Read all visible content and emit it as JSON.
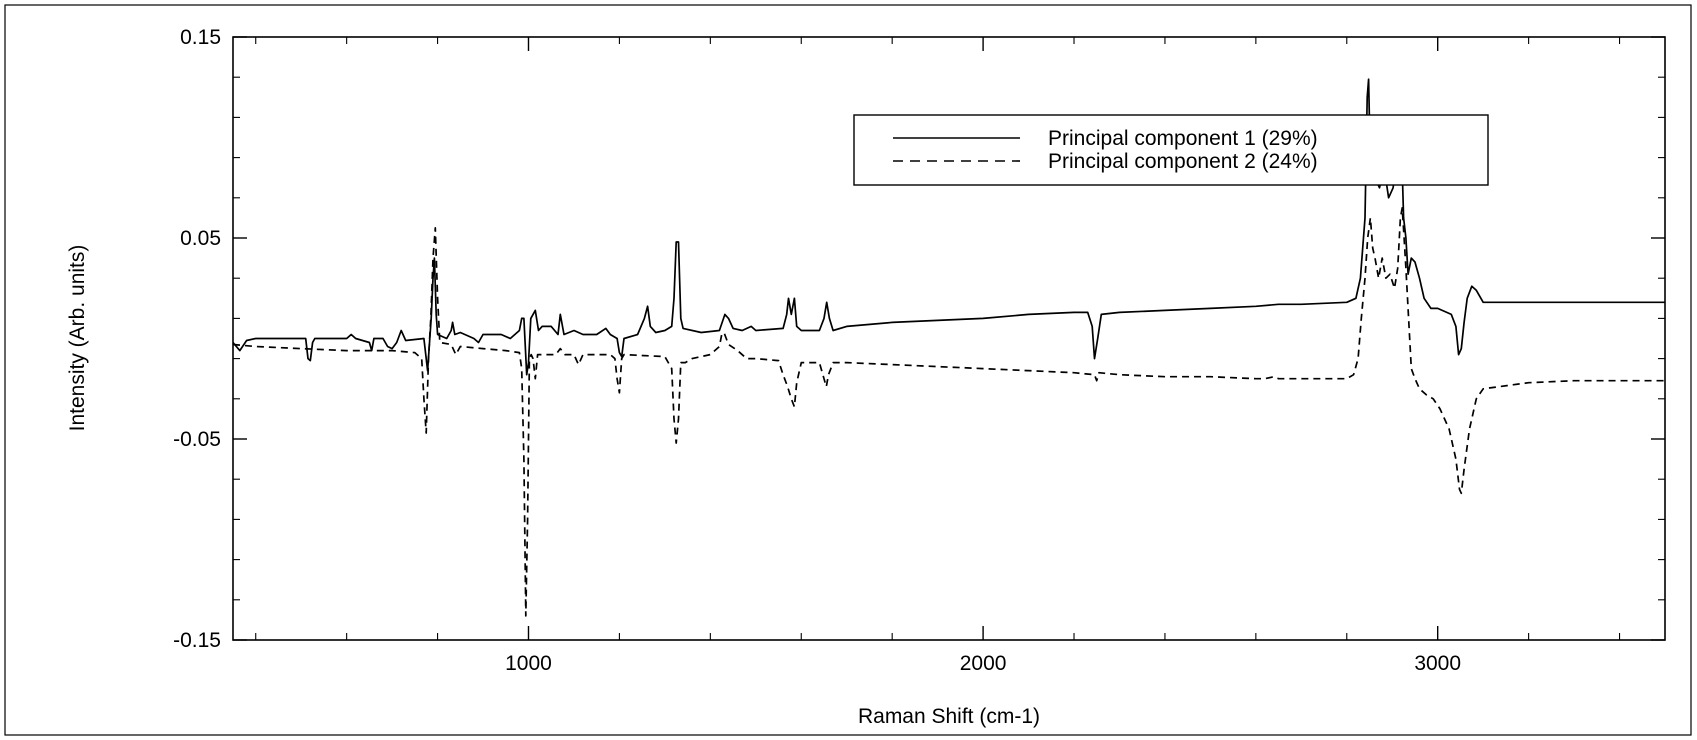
{
  "chart_data": {
    "type": "line",
    "title": "",
    "xlabel": "Raman Shift (cm-1)",
    "ylabel": "Intensity (Arb. units)",
    "xlim": [
      350,
      3500
    ],
    "ylim": [
      -0.15,
      0.15
    ],
    "xticks": [
      1000,
      2000,
      3000
    ],
    "yticks": [
      -0.15,
      -0.05,
      0.05,
      0.15
    ],
    "xtick_labels": [
      "1000",
      "2000",
      "3000"
    ],
    "ytick_labels": [
      "-0.15",
      "-0.05",
      "0.05",
      "0.15"
    ],
    "grid": false,
    "legend_position": "top-right",
    "series": [
      {
        "name": "Principal component 1 (29%)",
        "style": "solid",
        "color": "#000000",
        "points": [
          [
            350,
            -0.002
          ],
          [
            365,
            -0.006
          ],
          [
            380,
            -0.001
          ],
          [
            400,
            0.0
          ],
          [
            500,
            0.0
          ],
          [
            510,
            0.0
          ],
          [
            515,
            -0.01
          ],
          [
            520,
            -0.011
          ],
          [
            525,
            -0.002
          ],
          [
            530,
            0.0
          ],
          [
            600,
            0.0
          ],
          [
            610,
            0.002
          ],
          [
            620,
            0.0
          ],
          [
            650,
            -0.002
          ],
          [
            655,
            -0.006
          ],
          [
            660,
            0.0
          ],
          [
            680,
            0.0
          ],
          [
            690,
            -0.004
          ],
          [
            700,
            -0.005
          ],
          [
            710,
            -0.002
          ],
          [
            720,
            0.004
          ],
          [
            730,
            -0.001
          ],
          [
            770,
            0.0
          ],
          [
            778,
            -0.016
          ],
          [
            783,
            0.0
          ],
          [
            786,
            0.01
          ],
          [
            790,
            0.03
          ],
          [
            793,
            0.04
          ],
          [
            797,
            0.012
          ],
          [
            800,
            0.002
          ],
          [
            820,
            0.0
          ],
          [
            830,
            0.004
          ],
          [
            833,
            0.008
          ],
          [
            838,
            0.002
          ],
          [
            850,
            0.003
          ],
          [
            870,
            0.001
          ],
          [
            880,
            0.0
          ],
          [
            890,
            -0.002
          ],
          [
            900,
            0.002
          ],
          [
            940,
            0.002
          ],
          [
            960,
            0.0
          ],
          [
            980,
            0.004
          ],
          [
            985,
            0.01
          ],
          [
            990,
            0.01
          ],
          [
            996,
            -0.018
          ],
          [
            1000,
            -0.012
          ],
          [
            1005,
            0.01
          ],
          [
            1015,
            0.014
          ],
          [
            1022,
            0.004
          ],
          [
            1030,
            0.006
          ],
          [
            1050,
            0.006
          ],
          [
            1065,
            0.002
          ],
          [
            1070,
            0.012
          ],
          [
            1078,
            0.002
          ],
          [
            1100,
            0.004
          ],
          [
            1120,
            0.002
          ],
          [
            1150,
            0.002
          ],
          [
            1170,
            0.005
          ],
          [
            1180,
            0.002
          ],
          [
            1195,
            0.0
          ],
          [
            1200,
            -0.007
          ],
          [
            1205,
            -0.009
          ],
          [
            1210,
            0.0
          ],
          [
            1240,
            0.002
          ],
          [
            1255,
            0.01
          ],
          [
            1262,
            0.016
          ],
          [
            1268,
            0.006
          ],
          [
            1280,
            0.003
          ],
          [
            1300,
            0.004
          ],
          [
            1315,
            0.006
          ],
          [
            1320,
            0.02
          ],
          [
            1325,
            0.048
          ],
          [
            1330,
            0.048
          ],
          [
            1335,
            0.01
          ],
          [
            1340,
            0.005
          ],
          [
            1380,
            0.003
          ],
          [
            1420,
            0.004
          ],
          [
            1432,
            0.012
          ],
          [
            1440,
            0.01
          ],
          [
            1450,
            0.005
          ],
          [
            1470,
            0.004
          ],
          [
            1490,
            0.006
          ],
          [
            1500,
            0.004
          ],
          [
            1560,
            0.005
          ],
          [
            1568,
            0.012
          ],
          [
            1572,
            0.02
          ],
          [
            1578,
            0.012
          ],
          [
            1585,
            0.02
          ],
          [
            1590,
            0.006
          ],
          [
            1600,
            0.004
          ],
          [
            1640,
            0.004
          ],
          [
            1650,
            0.01
          ],
          [
            1656,
            0.018
          ],
          [
            1662,
            0.01
          ],
          [
            1670,
            0.004
          ],
          [
            1700,
            0.006
          ],
          [
            1800,
            0.008
          ],
          [
            2000,
            0.01
          ],
          [
            2100,
            0.012
          ],
          [
            2200,
            0.013
          ],
          [
            2230,
            0.013
          ],
          [
            2240,
            0.006
          ],
          [
            2245,
            -0.01
          ],
          [
            2252,
            0.0
          ],
          [
            2260,
            0.012
          ],
          [
            2300,
            0.013
          ],
          [
            2400,
            0.014
          ],
          [
            2500,
            0.015
          ],
          [
            2600,
            0.016
          ],
          [
            2650,
            0.017
          ],
          [
            2700,
            0.017
          ],
          [
            2800,
            0.018
          ],
          [
            2820,
            0.02
          ],
          [
            2830,
            0.03
          ],
          [
            2840,
            0.06
          ],
          [
            2845,
            0.12
          ],
          [
            2848,
            0.129
          ],
          [
            2852,
            0.085
          ],
          [
            2862,
            0.08
          ],
          [
            2872,
            0.075
          ],
          [
            2882,
            0.085
          ],
          [
            2892,
            0.07
          ],
          [
            2902,
            0.075
          ],
          [
            2910,
            0.09
          ],
          [
            2916,
            0.08
          ],
          [
            2920,
            0.1
          ],
          [
            2925,
            0.06
          ],
          [
            2930,
            0.05
          ],
          [
            2935,
            0.032
          ],
          [
            2942,
            0.04
          ],
          [
            2950,
            0.038
          ],
          [
            2960,
            0.03
          ],
          [
            2970,
            0.02
          ],
          [
            2985,
            0.015
          ],
          [
            3000,
            0.015
          ],
          [
            3030,
            0.012
          ],
          [
            3040,
            0.006
          ],
          [
            3046,
            -0.008
          ],
          [
            3052,
            -0.005
          ],
          [
            3058,
            0.008
          ],
          [
            3065,
            0.02
          ],
          [
            3075,
            0.026
          ],
          [
            3085,
            0.024
          ],
          [
            3100,
            0.018
          ],
          [
            3200,
            0.018
          ],
          [
            3300,
            0.018
          ],
          [
            3500,
            0.018
          ]
        ]
      },
      {
        "name": "Principal component 2 (24%)",
        "style": "dashed",
        "color": "#000000",
        "points": [
          [
            350,
            -0.003
          ],
          [
            400,
            -0.004
          ],
          [
            500,
            -0.005
          ],
          [
            600,
            -0.006
          ],
          [
            650,
            -0.006
          ],
          [
            700,
            -0.006
          ],
          [
            750,
            -0.007
          ],
          [
            765,
            -0.01
          ],
          [
            770,
            -0.03
          ],
          [
            775,
            -0.047
          ],
          [
            780,
            -0.01
          ],
          [
            785,
            0.01
          ],
          [
            790,
            0.04
          ],
          [
            795,
            0.055
          ],
          [
            800,
            0.02
          ],
          [
            805,
            -0.002
          ],
          [
            830,
            -0.003
          ],
          [
            840,
            -0.008
          ],
          [
            850,
            -0.004
          ],
          [
            900,
            -0.005
          ],
          [
            950,
            -0.006
          ],
          [
            980,
            -0.007
          ],
          [
            985,
            -0.015
          ],
          [
            990,
            -0.06
          ],
          [
            994,
            -0.138
          ],
          [
            998,
            -0.09
          ],
          [
            1002,
            -0.01
          ],
          [
            1006,
            -0.008
          ],
          [
            1010,
            -0.01
          ],
          [
            1015,
            -0.02
          ],
          [
            1020,
            -0.008
          ],
          [
            1060,
            -0.008
          ],
          [
            1070,
            -0.005
          ],
          [
            1080,
            -0.008
          ],
          [
            1100,
            -0.008
          ],
          [
            1110,
            -0.013
          ],
          [
            1120,
            -0.008
          ],
          [
            1180,
            -0.008
          ],
          [
            1190,
            -0.01
          ],
          [
            1195,
            -0.02
          ],
          [
            1200,
            -0.027
          ],
          [
            1205,
            -0.01
          ],
          [
            1210,
            -0.008
          ],
          [
            1300,
            -0.009
          ],
          [
            1315,
            -0.015
          ],
          [
            1320,
            -0.04
          ],
          [
            1325,
            -0.052
          ],
          [
            1330,
            -0.04
          ],
          [
            1335,
            -0.012
          ],
          [
            1345,
            -0.012
          ],
          [
            1360,
            -0.01
          ],
          [
            1400,
            -0.008
          ],
          [
            1420,
            -0.004
          ],
          [
            1425,
            0.002
          ],
          [
            1430,
            0.003
          ],
          [
            1440,
            -0.003
          ],
          [
            1460,
            -0.006
          ],
          [
            1480,
            -0.01
          ],
          [
            1500,
            -0.01
          ],
          [
            1550,
            -0.011
          ],
          [
            1560,
            -0.018
          ],
          [
            1570,
            -0.024
          ],
          [
            1578,
            -0.03
          ],
          [
            1585,
            -0.034
          ],
          [
            1590,
            -0.022
          ],
          [
            1600,
            -0.012
          ],
          [
            1640,
            -0.012
          ],
          [
            1650,
            -0.02
          ],
          [
            1655,
            -0.024
          ],
          [
            1660,
            -0.018
          ],
          [
            1670,
            -0.012
          ],
          [
            1700,
            -0.012
          ],
          [
            1800,
            -0.013
          ],
          [
            2000,
            -0.015
          ],
          [
            2200,
            -0.017
          ],
          [
            2245,
            -0.018
          ],
          [
            2250,
            -0.021
          ],
          [
            2255,
            -0.017
          ],
          [
            2300,
            -0.018
          ],
          [
            2400,
            -0.019
          ],
          [
            2500,
            -0.019
          ],
          [
            2600,
            -0.02
          ],
          [
            2620,
            -0.02
          ],
          [
            2640,
            -0.019
          ],
          [
            2650,
            -0.02
          ],
          [
            2700,
            -0.02
          ],
          [
            2800,
            -0.02
          ],
          [
            2815,
            -0.018
          ],
          [
            2825,
            -0.01
          ],
          [
            2832,
            0.01
          ],
          [
            2840,
            0.03
          ],
          [
            2846,
            0.05
          ],
          [
            2852,
            0.06
          ],
          [
            2857,
            0.045
          ],
          [
            2862,
            0.04
          ],
          [
            2870,
            0.03
          ],
          [
            2878,
            0.04
          ],
          [
            2886,
            0.03
          ],
          [
            2895,
            0.032
          ],
          [
            2905,
            0.025
          ],
          [
            2912,
            0.035
          ],
          [
            2918,
            0.06
          ],
          [
            2922,
            0.065
          ],
          [
            2926,
            0.05
          ],
          [
            2930,
            0.035
          ],
          [
            2936,
            0.01
          ],
          [
            2942,
            -0.015
          ],
          [
            2950,
            -0.02
          ],
          [
            2960,
            -0.025
          ],
          [
            2975,
            -0.028
          ],
          [
            2990,
            -0.03
          ],
          [
            3005,
            -0.035
          ],
          [
            3025,
            -0.045
          ],
          [
            3040,
            -0.06
          ],
          [
            3048,
            -0.075
          ],
          [
            3052,
            -0.077
          ],
          [
            3058,
            -0.065
          ],
          [
            3070,
            -0.045
          ],
          [
            3085,
            -0.03
          ],
          [
            3100,
            -0.025
          ],
          [
            3200,
            -0.022
          ],
          [
            3300,
            -0.021
          ],
          [
            3500,
            -0.021
          ]
        ]
      }
    ]
  }
}
